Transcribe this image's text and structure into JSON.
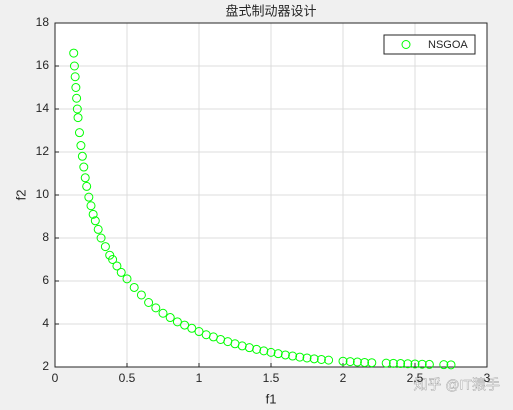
{
  "chart_data": {
    "type": "scatter",
    "title": "盘式制动器设计",
    "x_label": "f1",
    "y_label": "f2",
    "x": [
      0.13,
      0.135,
      0.14,
      0.145,
      0.15,
      0.155,
      0.16,
      0.17,
      0.18,
      0.19,
      0.2,
      0.21,
      0.22,
      0.235,
      0.25,
      0.265,
      0.28,
      0.3,
      0.32,
      0.35,
      0.38,
      0.4,
      0.43,
      0.46,
      0.5,
      0.55,
      0.6,
      0.65,
      0.7,
      0.75,
      0.8,
      0.85,
      0.9,
      0.95,
      1.0,
      1.05,
      1.1,
      1.15,
      1.2,
      1.25,
      1.3,
      1.35,
      1.4,
      1.45,
      1.5,
      1.55,
      1.6,
      1.65,
      1.7,
      1.75,
      1.8,
      1.85,
      1.9,
      2.0,
      2.05,
      2.1,
      2.15,
      2.2,
      2.3,
      2.35,
      2.4,
      2.45,
      2.5,
      2.55,
      2.6,
      2.7,
      2.75
    ],
    "series": [
      {
        "name": "NSGOA",
        "color": "#00ff00",
        "values": [
          16.6,
          16.0,
          15.5,
          15.0,
          14.5,
          14.0,
          13.6,
          12.9,
          12.3,
          11.8,
          11.3,
          10.8,
          10.4,
          9.9,
          9.5,
          9.1,
          8.8,
          8.4,
          8.0,
          7.6,
          7.2,
          7.0,
          6.7,
          6.4,
          6.1,
          5.7,
          5.35,
          5.0,
          4.75,
          4.5,
          4.3,
          4.1,
          3.95,
          3.8,
          3.65,
          3.5,
          3.4,
          3.28,
          3.18,
          3.08,
          2.98,
          2.9,
          2.82,
          2.75,
          2.68,
          2.62,
          2.56,
          2.51,
          2.46,
          2.42,
          2.38,
          2.35,
          2.32,
          2.27,
          2.25,
          2.23,
          2.21,
          2.2,
          2.18,
          2.17,
          2.16,
          2.15,
          2.14,
          2.13,
          2.12,
          2.11,
          2.1
        ]
      }
    ],
    "xlim": [
      0,
      3
    ],
    "xticks": [
      0,
      0.5,
      1,
      1.5,
      2,
      2.5,
      3
    ],
    "ylim": [
      2,
      18
    ],
    "yticks": [
      2,
      4,
      6,
      8,
      10,
      12,
      14,
      16,
      18
    ],
    "grid": true,
    "legend": "upper-right"
  },
  "watermark": "知乎 @IT猿手"
}
